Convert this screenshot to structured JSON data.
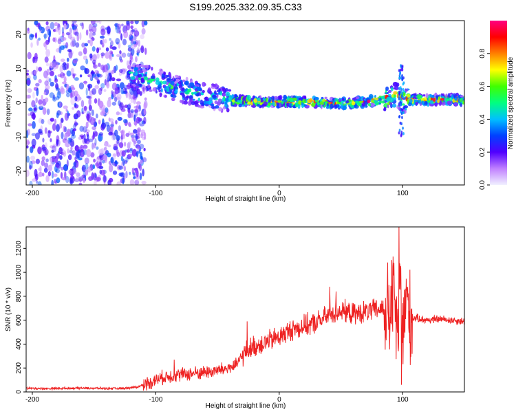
{
  "figure": {
    "title": "S199.2025.332.09.35.C33"
  },
  "chart_data": [
    {
      "type": "heatmap",
      "title": "S199.2025.332.09.35.C33",
      "xlabel": "Height of straight line (km)",
      "ylabel": "Frequency (Hz)",
      "xlim": [
        -205,
        150
      ],
      "ylim": [
        -24,
        24
      ],
      "xticks": [
        -200,
        -100,
        0,
        100
      ],
      "xtick_labels": [
        "-200",
        "-100",
        "0",
        "100"
      ],
      "yticks": [
        -20,
        -10,
        0,
        10,
        20
      ],
      "ytick_labels": [
        "-20",
        "-10",
        "0",
        "10",
        "20"
      ],
      "ridge": {
        "x": [
          -120,
          -110,
          -100,
          -90,
          -80,
          -70,
          -60,
          -50,
          -40,
          -30,
          -20,
          -10,
          0,
          10,
          20,
          30,
          40,
          50,
          60,
          70,
          80,
          90,
          95,
          100,
          110,
          120,
          130,
          140,
          150
        ],
        "freq": [
          8,
          7.5,
          6.5,
          5,
          4,
          3,
          2,
          1.5,
          1,
          0.5,
          0.3,
          0.3,
          0.2,
          0.3,
          0.2,
          0.2,
          0,
          -0.2,
          0,
          0.3,
          0.8,
          1.5,
          2.5,
          0.5,
          1,
          0.8,
          1,
          1,
          0.6
        ]
      },
      "colorbar": {
        "label": "Normalized spectral amplitude",
        "range": [
          0,
          1
        ],
        "ticks": [
          0.0,
          0.2,
          0.4,
          0.6,
          0.8
        ],
        "tick_labels": [
          "0.0",
          "0.2",
          "0.4",
          "0.6",
          "0.8"
        ],
        "colormap": [
          "#f0f0ff",
          "#c080ff",
          "#5000ff",
          "#0040ff",
          "#00c0ff",
          "#00ff80",
          "#40ff00",
          "#ffff00",
          "#ff8000",
          "#ff0000",
          "#ff0080"
        ]
      }
    },
    {
      "type": "line",
      "xlabel": "Height of straight line (km)",
      "ylabel": "SNR (10 * v/v)",
      "xlim": [
        -205,
        150
      ],
      "ylim": [
        0,
        1380
      ],
      "xticks": [
        -200,
        -100,
        0,
        100
      ],
      "xtick_labels": [
        "-200",
        "-100",
        "0",
        "100"
      ],
      "yticks": [
        0,
        200,
        400,
        600,
        800,
        1000,
        1200
      ],
      "ytick_labels": [
        "0",
        "200",
        "400",
        "600",
        "800",
        "1000",
        "1200"
      ],
      "series": [
        {
          "name": "SNR",
          "color": "#ee2222",
          "x": [
            -205,
            -190,
            -175,
            -160,
            -145,
            -130,
            -115,
            -105,
            -95,
            -85,
            -75,
            -65,
            -55,
            -45,
            -35,
            -30,
            -25,
            -20,
            -15,
            -10,
            -5,
            0,
            10,
            20,
            30,
            40,
            50,
            60,
            70,
            80,
            85,
            90,
            93,
            96,
            98,
            100,
            103,
            106,
            110,
            120,
            130,
            140,
            150
          ],
          "y": [
            30,
            28,
            30,
            32,
            30,
            28,
            40,
            80,
            120,
            140,
            150,
            160,
            170,
            190,
            220,
            300,
            360,
            380,
            400,
            420,
            440,
            460,
            520,
            550,
            580,
            640,
            680,
            650,
            670,
            690,
            700,
            650,
            850,
            400,
            900,
            500,
            800,
            600,
            620,
            600,
            610,
            600,
            590
          ]
        }
      ],
      "spikes": [
        {
          "x": 97,
          "y": 1380
        },
        {
          "x": 99,
          "y": 60
        },
        {
          "x": 41,
          "y": 880
        },
        {
          "x": 46,
          "y": 840
        },
        {
          "x": -26,
          "y": 590
        },
        {
          "x": -85,
          "y": 270
        }
      ]
    }
  ]
}
